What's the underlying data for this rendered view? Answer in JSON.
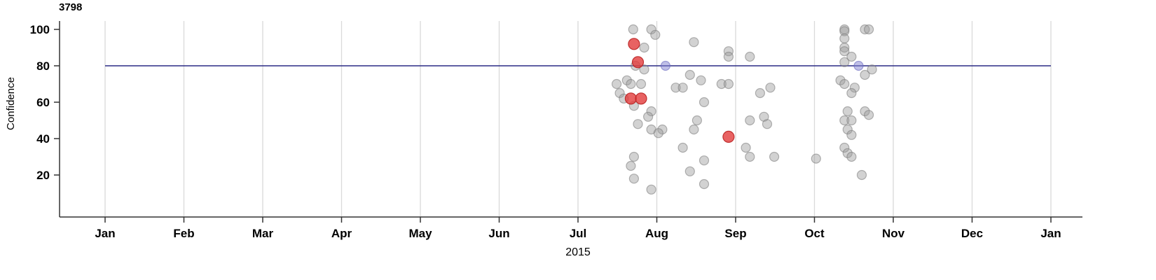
{
  "chart_data": {
    "type": "scatter",
    "title": "3798",
    "xlabel": "2015",
    "ylabel": "Confidence",
    "x_unit": "month-index (0 = Jan 2015 tick, 12 = Jan 2016 tick)",
    "x_ticks": [
      "Jan",
      "Feb",
      "Mar",
      "Apr",
      "May",
      "Jun",
      "Jul",
      "Aug",
      "Sep",
      "Oct",
      "Nov",
      "Dec",
      "Jan"
    ],
    "y_ticks": [
      20,
      40,
      60,
      80,
      100
    ],
    "ylim": [
      0,
      105
    ],
    "grid": "vertical-only",
    "legend": "none",
    "reference_line": {
      "y": 80,
      "color": "#2b2b85"
    },
    "series": [
      {
        "name": "observation",
        "color": "#9c9c9c",
        "stroke": "#787878",
        "fill_opacity": 0.45,
        "stroke_opacity": 0.55,
        "radius": 6.5,
        "points": [
          [
            6.7,
            100
          ],
          [
            6.93,
            100
          ],
          [
            6.98,
            97
          ],
          [
            6.84,
            90
          ],
          [
            6.73,
            80
          ],
          [
            6.84,
            78
          ],
          [
            6.62,
            72
          ],
          [
            6.49,
            70
          ],
          [
            6.67,
            70
          ],
          [
            6.8,
            70
          ],
          [
            6.53,
            65
          ],
          [
            6.58,
            62
          ],
          [
            6.71,
            58
          ],
          [
            6.93,
            55
          ],
          [
            6.89,
            52
          ],
          [
            6.76,
            48
          ],
          [
            6.93,
            45
          ],
          [
            7.07,
            45
          ],
          [
            7.02,
            43
          ],
          [
            6.71,
            30
          ],
          [
            6.67,
            25
          ],
          [
            6.71,
            18
          ],
          [
            6.93,
            12
          ],
          [
            7.47,
            93
          ],
          [
            7.42,
            75
          ],
          [
            7.56,
            72
          ],
          [
            7.24,
            68
          ],
          [
            7.33,
            68
          ],
          [
            7.6,
            60
          ],
          [
            7.51,
            50
          ],
          [
            7.47,
            45
          ],
          [
            7.33,
            35
          ],
          [
            7.6,
            28
          ],
          [
            7.42,
            22
          ],
          [
            7.6,
            15
          ],
          [
            7.91,
            88
          ],
          [
            7.91,
            85
          ],
          [
            7.82,
            70
          ],
          [
            7.91,
            70
          ],
          [
            8.18,
            85
          ],
          [
            8.18,
            50
          ],
          [
            8.13,
            35
          ],
          [
            8.18,
            30
          ],
          [
            8.31,
            65
          ],
          [
            8.36,
            52
          ],
          [
            8.4,
            48
          ],
          [
            8.44,
            68
          ],
          [
            8.49,
            30
          ],
          [
            9.02,
            29
          ],
          [
            9.38,
            100
          ],
          [
            9.38,
            99
          ],
          [
            9.64,
            100
          ],
          [
            9.69,
            100
          ],
          [
            9.38,
            95
          ],
          [
            9.38,
            90
          ],
          [
            9.38,
            88
          ],
          [
            9.47,
            85
          ],
          [
            9.38,
            82
          ],
          [
            9.73,
            78
          ],
          [
            9.64,
            75
          ],
          [
            9.33,
            72
          ],
          [
            9.38,
            70
          ],
          [
            9.51,
            68
          ],
          [
            9.47,
            65
          ],
          [
            9.42,
            55
          ],
          [
            9.64,
            55
          ],
          [
            9.69,
            53
          ],
          [
            9.38,
            50
          ],
          [
            9.47,
            50
          ],
          [
            9.42,
            45
          ],
          [
            9.47,
            42
          ],
          [
            9.38,
            35
          ],
          [
            9.42,
            32
          ],
          [
            9.47,
            30
          ],
          [
            9.6,
            20
          ]
        ]
      },
      {
        "name": "highlighted-red",
        "color": "#e23b3b",
        "stroke": "#b92222",
        "fill_opacity": 0.8,
        "stroke_opacity": 0.9,
        "radius": 8,
        "points": [
          [
            6.71,
            92
          ],
          [
            6.76,
            82
          ],
          [
            6.67,
            62
          ],
          [
            6.8,
            62
          ],
          [
            7.91,
            41
          ]
        ]
      },
      {
        "name": "highlighted-blue",
        "color": "#8080d0",
        "stroke": "#6a6ac0",
        "fill_opacity": 0.5,
        "stroke_opacity": 0.6,
        "radius": 6.5,
        "points": [
          [
            7.11,
            80
          ],
          [
            9.56,
            80
          ]
        ]
      }
    ]
  },
  "colors": {
    "background": "#ffffff",
    "gridline": "#d9d9d9",
    "axis": "#333333",
    "text": "#000000",
    "reference_line": "#2b2b85"
  }
}
